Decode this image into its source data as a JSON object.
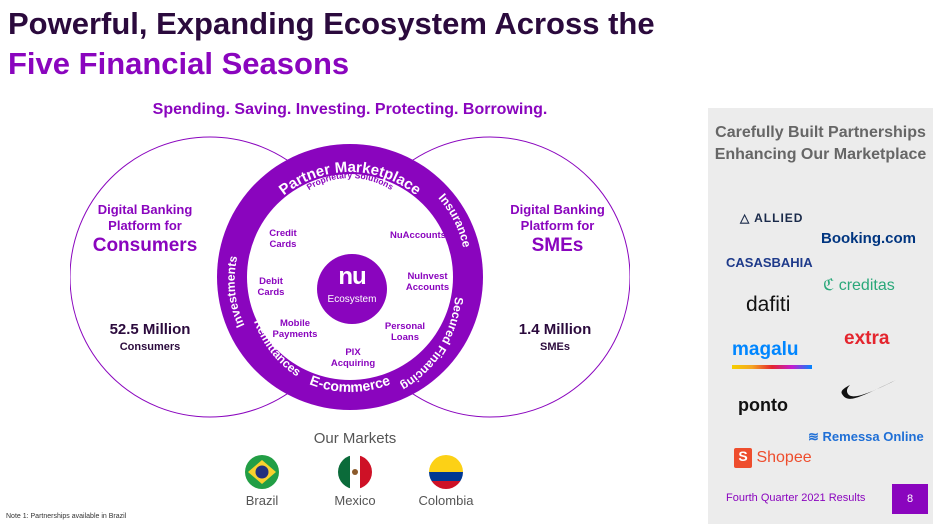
{
  "title": {
    "line1": "Powerful, Expanding Ecosystem Across the",
    "line2": "Five Financial Seasons"
  },
  "tagline": "Spending. Saving. Investing. Protecting. Borrowing.",
  "left_circle": {
    "subtitle": "Digital Banking Platform for",
    "audience": "Consumers",
    "count": "52.5 Million",
    "unit": "Consumers"
  },
  "right_circle": {
    "subtitle": "Digital Banking Platform for",
    "audience": "SMEs",
    "count": "1.4 Million",
    "unit": "SMEs"
  },
  "ring": {
    "top": "Partner Marketplace",
    "left": "Investments",
    "right_top": "Insurance",
    "right_bottom": "Secured Financing",
    "left_bottom": "Remittances",
    "bottom": "E-commerce"
  },
  "proprietary_label": "Proprietary Solutions",
  "products": {
    "credit_cards": "Credit Cards",
    "debit_cards": "Debit Cards",
    "mobile_payments": "Mobile Payments",
    "pix": "PIX Acquiring",
    "nuaccounts": "NuAccounts",
    "nuinvest": "NuInvest Accounts",
    "personal_loans": "Personal Loans"
  },
  "center_logo": {
    "mark": "nu",
    "label": "Ecosystem"
  },
  "markets": {
    "title": "Our Markets",
    "items": [
      "Brazil",
      "Mexico",
      "Colombia"
    ]
  },
  "note": "Note 1: Partnerships available in Brazil",
  "partners": {
    "title": "Carefully Built Partnerships Enhancing Our Marketplace",
    "logos": [
      "ALLIED",
      "Booking.com",
      "CASASBAHIA",
      "creditas",
      "dafiti",
      "extra",
      "magalu",
      "ponto",
      "Remessa Online",
      "Shopee"
    ]
  },
  "footer": {
    "text": "Fourth Quarter 2021 Results",
    "page": "8"
  },
  "colors": {
    "brand_purple": "#8a05be",
    "dark_purple": "#2b0a3d",
    "panel_bg": "#ececec"
  }
}
